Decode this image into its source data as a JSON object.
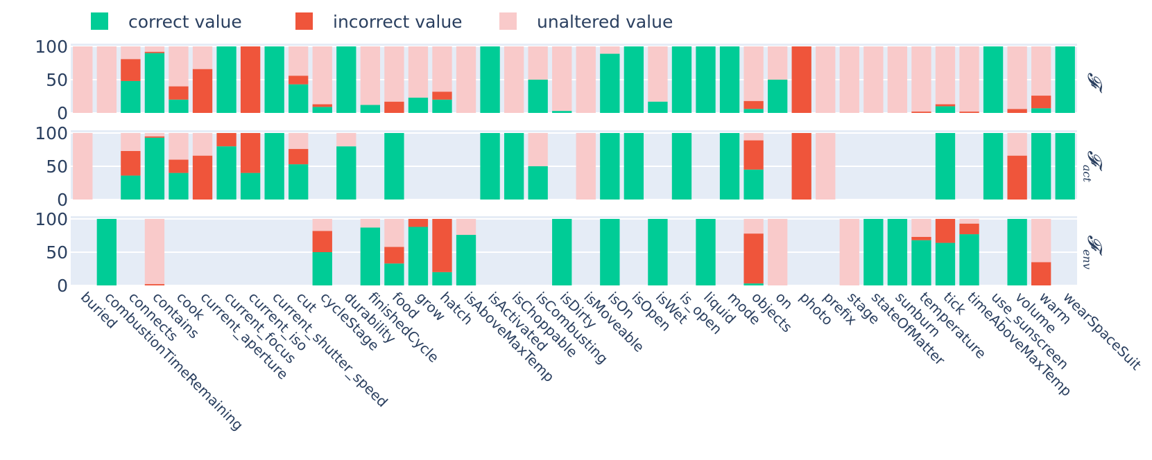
{
  "chart_data": {
    "type": "bar",
    "stacked": true,
    "legend": {
      "placement": "top-left",
      "entries": [
        {
          "key": "correct",
          "label": "correct value",
          "color": "#00cc96"
        },
        {
          "key": "incorrect",
          "label": "incorrect value",
          "color": "#ef553b"
        },
        {
          "key": "unaltered",
          "label": "unaltered value",
          "color": "#f9caca"
        }
      ]
    },
    "categories": [
      "buried",
      "combustionTimeRemaining",
      "connects",
      "contains",
      "cook",
      "current_aperture",
      "current_focus",
      "current_iso",
      "current_shutter_speed",
      "cut",
      "cycleStage",
      "durability",
      "finishedCycle",
      "food",
      "grow",
      "hatch",
      "isAboveMaxTemp",
      "isActivated",
      "isChoppable",
      "isCombusting",
      "isDirty",
      "isMoveable",
      "isOn",
      "isOpen",
      "isWet",
      "is_open",
      "liquid",
      "mode",
      "objects",
      "on",
      "photo",
      "prefix",
      "stage",
      "stateOfMatter",
      "sunburn",
      "temperature",
      "tick",
      "timeAboveMaxTemp",
      "use_sunscreen",
      "volume",
      "warm",
      "wearSpaceSuit"
    ],
    "ylim": [
      0,
      100
    ],
    "yticks": [
      0,
      50,
      100
    ],
    "panels": [
      {
        "name": "F",
        "title_main": "𝓕",
        "title_sub": "",
        "correct": [
          0,
          0,
          48,
          90,
          20,
          0,
          100,
          0,
          100,
          43,
          9,
          100,
          12,
          0,
          23,
          20,
          0,
          100,
          0,
          50,
          3,
          0,
          89,
          100,
          17,
          100,
          100,
          100,
          6,
          50,
          0,
          0,
          0,
          0,
          0,
          0,
          10,
          0,
          100,
          0,
          7,
          100
        ],
        "incorrect": [
          0,
          0,
          33,
          2,
          20,
          66,
          0,
          100,
          0,
          13,
          4,
          0,
          0,
          17,
          0,
          12,
          0,
          0,
          0,
          0,
          0,
          0,
          0,
          0,
          0,
          0,
          0,
          0,
          12,
          0,
          100,
          0,
          0,
          0,
          0,
          2,
          3,
          2,
          0,
          6,
          19,
          0
        ],
        "unaltered": [
          100,
          100,
          19,
          8,
          60,
          34,
          0,
          0,
          0,
          44,
          87,
          0,
          88,
          83,
          77,
          68,
          100,
          0,
          100,
          50,
          97,
          100,
          11,
          0,
          83,
          0,
          0,
          0,
          82,
          50,
          0,
          100,
          100,
          100,
          100,
          98,
          87,
          98,
          0,
          94,
          74,
          0
        ]
      },
      {
        "name": "F_act",
        "title_main": "𝓕",
        "title_sub": "act",
        "correct": [
          0,
          0,
          36,
          93,
          40,
          0,
          80,
          40,
          100,
          53,
          0,
          80,
          0,
          100,
          0,
          0,
          0,
          100,
          100,
          50,
          0,
          0,
          100,
          100,
          0,
          100,
          0,
          100,
          45,
          0,
          0,
          0,
          0,
          0,
          0,
          0,
          100,
          0,
          100,
          0,
          100,
          100
        ],
        "incorrect": [
          0,
          0,
          37,
          2,
          20,
          66,
          20,
          60,
          0,
          23,
          0,
          0,
          0,
          0,
          0,
          0,
          0,
          0,
          0,
          0,
          0,
          0,
          0,
          0,
          0,
          0,
          0,
          0,
          44,
          0,
          100,
          0,
          0,
          0,
          0,
          0,
          0,
          0,
          0,
          66,
          0,
          0
        ],
        "unaltered": [
          100,
          0,
          27,
          5,
          40,
          34,
          0,
          0,
          0,
          24,
          0,
          20,
          0,
          0,
          0,
          0,
          0,
          0,
          0,
          50,
          0,
          100,
          0,
          0,
          0,
          0,
          0,
          0,
          11,
          0,
          0,
          100,
          0,
          0,
          0,
          0,
          0,
          0,
          0,
          34,
          0,
          0
        ]
      },
      {
        "name": "F_env",
        "title_main": "𝓕",
        "title_sub": "env",
        "correct": [
          0,
          100,
          0,
          0,
          0,
          0,
          0,
          0,
          0,
          0,
          50,
          0,
          87,
          33,
          88,
          20,
          76,
          0,
          0,
          0,
          100,
          0,
          100,
          0,
          100,
          0,
          100,
          0,
          3,
          0,
          0,
          0,
          0,
          100,
          100,
          68,
          64,
          77,
          0,
          100,
          0,
          0
        ],
        "incorrect": [
          0,
          0,
          0,
          2,
          0,
          0,
          0,
          0,
          0,
          0,
          32,
          0,
          0,
          25,
          12,
          80,
          0,
          0,
          0,
          0,
          0,
          0,
          0,
          0,
          0,
          0,
          0,
          0,
          75,
          0,
          0,
          0,
          0,
          0,
          0,
          5,
          36,
          16,
          0,
          0,
          35,
          0
        ],
        "unaltered": [
          0,
          0,
          0,
          98,
          0,
          0,
          0,
          0,
          0,
          0,
          18,
          0,
          13,
          42,
          0,
          0,
          24,
          0,
          0,
          0,
          0,
          0,
          0,
          0,
          0,
          0,
          0,
          0,
          22,
          100,
          0,
          0,
          100,
          0,
          0,
          27,
          0,
          7,
          0,
          0,
          65,
          0
        ]
      }
    ]
  }
}
